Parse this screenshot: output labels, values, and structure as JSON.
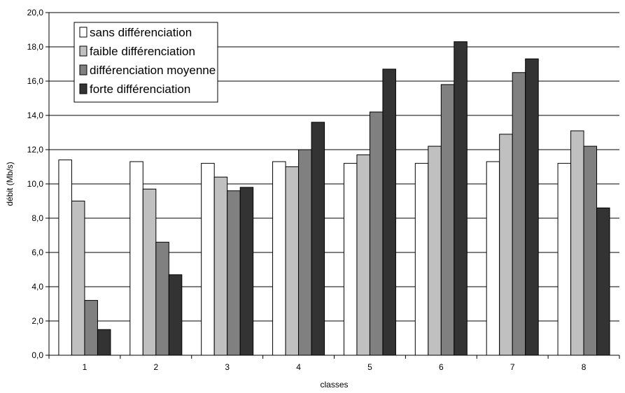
{
  "chart_data": {
    "type": "bar",
    "categories": [
      "1",
      "2",
      "3",
      "4",
      "5",
      "6",
      "7",
      "8"
    ],
    "series": [
      {
        "name": "sans différenciation",
        "color": "#ffffff",
        "values": [
          11.4,
          11.3,
          11.2,
          11.3,
          11.2,
          11.2,
          11.3,
          11.2
        ]
      },
      {
        "name": "faible différenciation",
        "color": "#c0c0c0",
        "values": [
          9.0,
          9.7,
          10.4,
          11.0,
          11.7,
          12.2,
          12.9,
          13.1
        ]
      },
      {
        "name": "différenciation moyenne",
        "color": "#808080",
        "values": [
          3.2,
          6.6,
          9.6,
          12.0,
          14.2,
          15.8,
          16.5,
          12.2
        ]
      },
      {
        "name": "forte différenciation",
        "color": "#333333",
        "values": [
          1.5,
          4.7,
          9.8,
          13.6,
          16.7,
          18.3,
          17.3,
          8.6
        ]
      }
    ],
    "xlabel": "classes",
    "ylabel": "débit (Mb/s)",
    "ylim": [
      0,
      20
    ],
    "ytick_step": 2,
    "yticks": [
      "0,0",
      "2,0",
      "4,0",
      "6,0",
      "8,0",
      "10,0",
      "12,0",
      "14,0",
      "16,0",
      "18,0",
      "20,0"
    ],
    "grid": true,
    "legend_position": "top-left"
  }
}
